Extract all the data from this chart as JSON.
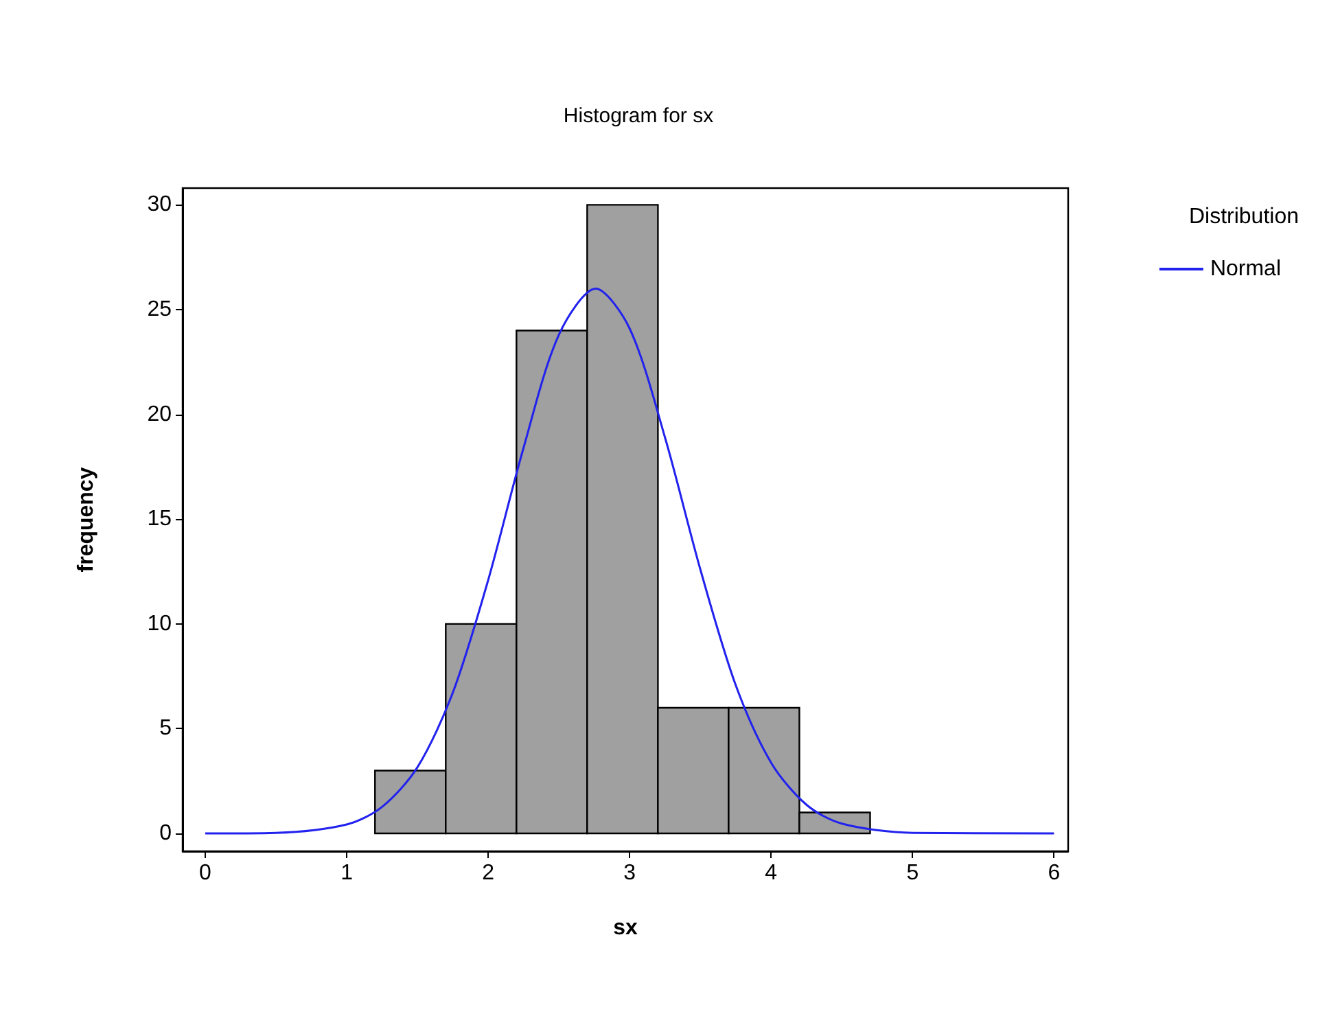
{
  "chart_data": {
    "type": "histogram",
    "title": "Histogram for sx",
    "xlabel": "sx",
    "ylabel": "frequency",
    "legend_title": "Distribution",
    "legend": "top right",
    "grid": false,
    "marker": "none",
    "bins": [
      1.2,
      1.7,
      2.2,
      2.7,
      3.2,
      3.7,
      4.2,
      4.7
    ],
    "values": [
      3,
      10,
      24,
      30,
      6,
      6,
      1
    ],
    "color": "#a0a0a0",
    "series": [
      {
        "name": "Normal",
        "type": "line",
        "color": "#2222ee",
        "x": [
          0,
          0.5,
          1.0,
          1.25,
          1.5,
          1.75,
          2.0,
          2.25,
          2.5,
          2.76,
          3.0,
          3.25,
          3.5,
          3.75,
          4.0,
          4.25,
          4.5,
          5.0,
          6.0
        ],
        "values": [
          0,
          0.03,
          0.43,
          1.27,
          3.16,
          6.72,
          12.09,
          18.4,
          23.8,
          26,
          24.1,
          18.9,
          12.6,
          7.08,
          3.38,
          1.37,
          0.47,
          0.03,
          0
        ]
      }
    ],
    "xlim": [
      -0.16,
      6.1
    ],
    "ylim": [
      -0.85,
      30.8
    ],
    "xticks": [
      0,
      1,
      2,
      3,
      4,
      5,
      6
    ],
    "yticks": [
      0,
      5,
      10,
      15,
      20,
      25,
      30
    ]
  }
}
